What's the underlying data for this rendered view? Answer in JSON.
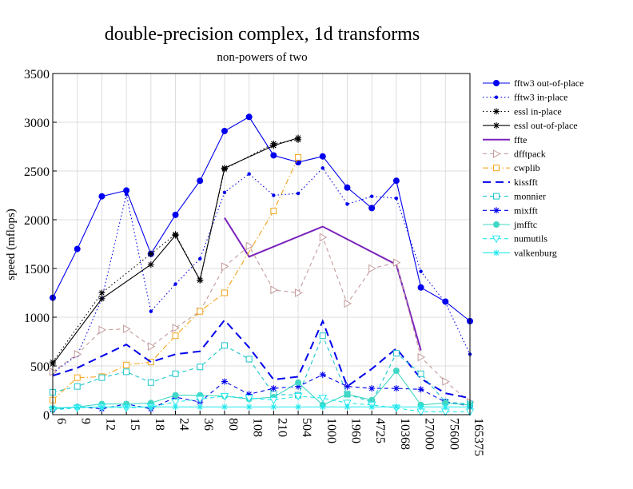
{
  "chart_data": {
    "type": "line",
    "title": "double-precision complex, 1d transforms",
    "subtitle": "non-powers of two",
    "ylabel": "speed (mflops)",
    "xlabel": "",
    "ylim": [
      0,
      3500
    ],
    "yticks": [
      0,
      500,
      1000,
      1500,
      2000,
      2500,
      3000,
      3500
    ],
    "grid": true,
    "legend_position": "right",
    "categories": [
      "6",
      "9",
      "12",
      "15",
      "18",
      "24",
      "36",
      "80",
      "108",
      "210",
      "504",
      "1000",
      "1960",
      "4725",
      "10368",
      "27000",
      "75600",
      "165375"
    ],
    "series": [
      {
        "name": "fftw3 out-of-place",
        "color": "#0000ee",
        "dash": "solid",
        "marker": "dot-big",
        "values": [
          1200,
          1700,
          2240,
          2300,
          1650,
          2050,
          2400,
          2910,
          3055,
          2660,
          2590,
          2650,
          2330,
          2120,
          2400,
          1305,
          1160,
          960
        ]
      },
      {
        "name": "fftw3 in-place",
        "color": "#0000ee",
        "dash": "dotted",
        "marker": "dot-small",
        "values": [
          430,
          610,
          1190,
          2260,
          1060,
          1340,
          1600,
          2280,
          2470,
          2250,
          2270,
          2530,
          2160,
          2240,
          2220,
          1470,
          1150,
          620
        ]
      },
      {
        "name": "essl in-place",
        "color": "#000000",
        "dash": "dotted",
        "marker": "star",
        "values": [
          540,
          null,
          1250,
          null,
          1650,
          1850,
          1380,
          2520,
          null,
          2780,
          2820,
          null,
          null,
          null,
          null,
          null,
          null,
          null
        ]
      },
      {
        "name": "essl out-of-place",
        "color": "#000000",
        "dash": "solid",
        "marker": "star",
        "values": [
          520,
          null,
          1190,
          null,
          1540,
          1840,
          1380,
          2530,
          null,
          2760,
          2840,
          null,
          null,
          null,
          null,
          null,
          null,
          null
        ]
      },
      {
        "name": "ffte",
        "color": "#7a22bb",
        "dash": "solid",
        "marker": "none",
        "values": [
          null,
          null,
          null,
          null,
          null,
          null,
          null,
          2020,
          1620,
          null,
          null,
          1930,
          null,
          null,
          1540,
          660,
          null,
          null
        ]
      },
      {
        "name": "dfftpack",
        "color": "#c49a9a",
        "dash": "dashed",
        "marker": "triangle-right",
        "values": [
          440,
          620,
          870,
          880,
          700,
          890,
          1060,
          1520,
          1730,
          1280,
          1250,
          1820,
          1140,
          1500,
          1560,
          590,
          340,
          130
        ]
      },
      {
        "name": "cwplib",
        "color": "#f2a51a",
        "dash": "dashdot",
        "marker": "square",
        "values": [
          150,
          380,
          390,
          510,
          540,
          810,
          1060,
          1250,
          null,
          2090,
          2640,
          null,
          null,
          null,
          null,
          null,
          null,
          null
        ]
      },
      {
        "name": "kissfft",
        "color": "#0000ee",
        "dash": "longdash",
        "marker": "none",
        "values": [
          400,
          480,
          600,
          720,
          540,
          620,
          650,
          970,
          690,
          360,
          390,
          960,
          290,
          470,
          680,
          370,
          220,
          170
        ]
      },
      {
        "name": "monnier",
        "color": "#1dc6cc",
        "dash": "dashed",
        "marker": "square",
        "values": [
          230,
          290,
          380,
          440,
          330,
          420,
          490,
          710,
          570,
          210,
          200,
          810,
          210,
          130,
          630,
          420,
          130,
          110
        ]
      },
      {
        "name": "mixfft",
        "color": "#0000ee",
        "dash": "dashed",
        "marker": "star",
        "values": [
          50,
          80,
          60,
          110,
          60,
          180,
          130,
          340,
          210,
          270,
          290,
          410,
          290,
          270,
          270,
          260,
          130,
          90
        ]
      },
      {
        "name": "jmfftc",
        "color": "#40d8c4",
        "dash": "solid",
        "marker": "dot-big",
        "values": [
          60,
          80,
          110,
          110,
          120,
          200,
          200,
          190,
          160,
          180,
          330,
          100,
          210,
          150,
          450,
          100,
          120,
          100
        ]
      },
      {
        "name": "numutils",
        "color": "#20e8ee",
        "dash": "dashed",
        "marker": "triangle-down",
        "values": [
          50,
          70,
          80,
          70,
          80,
          130,
          160,
          190,
          170,
          150,
          190,
          170,
          120,
          100,
          70,
          30,
          30,
          30
        ]
      },
      {
        "name": "valkenburg",
        "color": "#20e8ee",
        "dash": "solid",
        "marker": "star",
        "values": [
          70,
          75,
          80,
          80,
          80,
          80,
          80,
          80,
          80,
          80,
          80,
          80,
          80,
          80,
          80,
          80,
          80,
          80
        ]
      }
    ]
  }
}
